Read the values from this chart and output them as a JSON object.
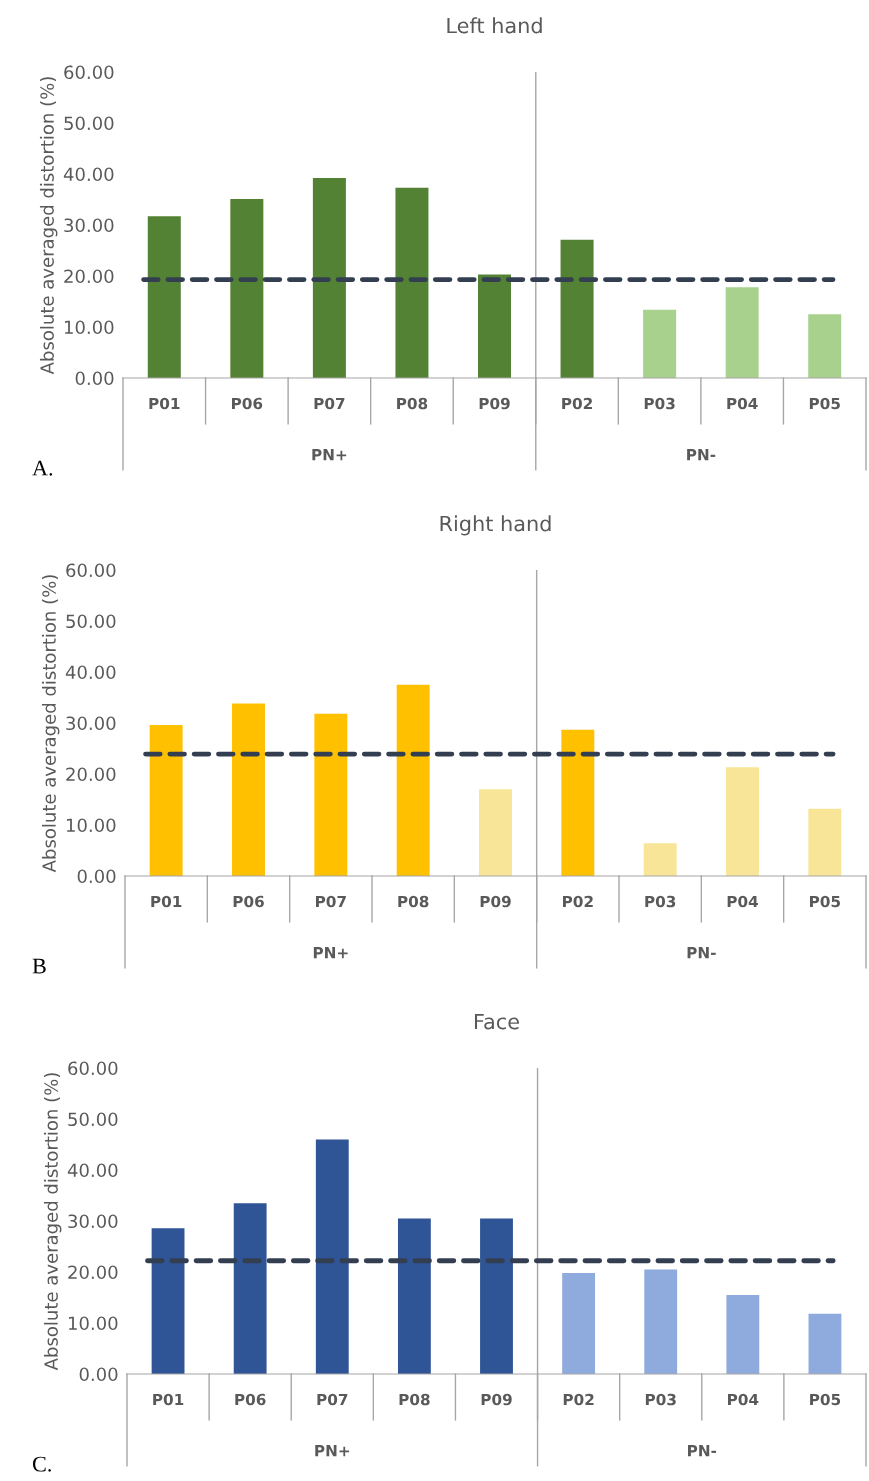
{
  "chart_data": [
    {
      "type": "bar",
      "title": "Left hand",
      "ylabel": "Absolute averaged distortion (%)",
      "categories": [
        "P01",
        "P06",
        "P07",
        "P08",
        "P09",
        "P02",
        "P03",
        "P04",
        "P05"
      ],
      "values": [
        31.7,
        35.1,
        39.2,
        37.3,
        20.3,
        27.1,
        13.4,
        17.8,
        12.5
      ],
      "colors": [
        "#548235",
        "#548235",
        "#548235",
        "#548235",
        "#548235",
        "#548235",
        "#a9d18e",
        "#a9d18e",
        "#a9d18e"
      ],
      "ylim": [
        0,
        60
      ],
      "yticks": [
        {
          "value": 0,
          "label": "0.00"
        },
        {
          "value": 10,
          "label": "10.00"
        },
        {
          "value": 20,
          "label": "20.00"
        },
        {
          "value": 30,
          "label": "30.00"
        },
        {
          "value": 40,
          "label": "40.00"
        },
        {
          "value": 50,
          "label": "50.00"
        },
        {
          "value": 60,
          "label": "60.00"
        }
      ],
      "ref_lines": [
        {
          "axis": "y",
          "value": 19.3,
          "color": "#333f50",
          "line_style": "dashed"
        }
      ],
      "annotations": [
        "PN+",
        "PN-",
        "A."
      ],
      "grid": false
    },
    {
      "type": "bar",
      "title": "Right hand",
      "ylabel": "Absolute averaged distortion (%)",
      "categories": [
        "P01",
        "P06",
        "P07",
        "P08",
        "P09",
        "P02",
        "P03",
        "P04",
        "P05"
      ],
      "values": [
        29.6,
        33.8,
        31.8,
        37.5,
        17.0,
        28.7,
        6.4,
        21.3,
        13.2
      ],
      "colors": [
        "#ffc000",
        "#ffc000",
        "#ffc000",
        "#ffc000",
        "#f8e597",
        "#ffc000",
        "#f8e597",
        "#f8e597",
        "#f8e597"
      ],
      "ylim": [
        0,
        60
      ],
      "yticks": [
        {
          "value": 0,
          "label": "0.00"
        },
        {
          "value": 10,
          "label": "10.00"
        },
        {
          "value": 20,
          "label": "20.00"
        },
        {
          "value": 30,
          "label": "30.00"
        },
        {
          "value": 40,
          "label": "40.00"
        },
        {
          "value": 50,
          "label": "50.00"
        },
        {
          "value": 60,
          "label": "60.00"
        }
      ],
      "ref_lines": [
        {
          "axis": "y",
          "value": 23.9,
          "color": "#333f50",
          "line_style": "dashed"
        }
      ],
      "annotations": [
        "PN+",
        "PN-",
        "B"
      ],
      "grid": false
    },
    {
      "type": "bar",
      "title": "Face",
      "ylabel": "Absolute averaged distortion (%)",
      "categories": [
        "P01",
        "P06",
        "P07",
        "P08",
        "P09",
        "P02",
        "P03",
        "P04",
        "P05"
      ],
      "values": [
        28.6,
        33.5,
        46.0,
        30.5,
        30.5,
        19.8,
        20.5,
        15.5,
        11.8
      ],
      "colors": [
        "#2f5597",
        "#2f5597",
        "#2f5597",
        "#2f5597",
        "#2f5597",
        "#8faadc",
        "#8faadc",
        "#8faadc",
        "#8faadc"
      ],
      "ylim": [
        0,
        60
      ],
      "yticks": [
        {
          "value": 0,
          "label": "0.00"
        },
        {
          "value": 10,
          "label": "10.00"
        },
        {
          "value": 20,
          "label": "20.00"
        },
        {
          "value": 30,
          "label": "30.00"
        },
        {
          "value": 40,
          "label": "40.00"
        },
        {
          "value": 50,
          "label": "50.00"
        },
        {
          "value": 60,
          "label": "60.00"
        }
      ],
      "ref_lines": [
        {
          "axis": "y",
          "value": 22.2,
          "color": "#333f50",
          "line_style": "dashed"
        }
      ],
      "annotations": [
        "PN+",
        "PN-",
        "C."
      ],
      "grid": false
    }
  ]
}
